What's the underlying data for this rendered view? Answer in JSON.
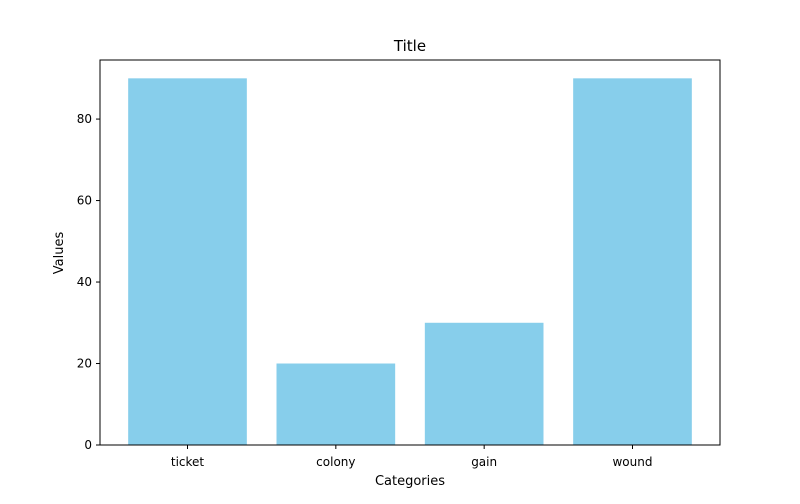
{
  "chart_data": {
    "type": "bar",
    "title": "Title",
    "xlabel": "Categories",
    "ylabel": "Values",
    "categories": [
      "ticket",
      "colony",
      "gain",
      "wound"
    ],
    "values": [
      90,
      20,
      30,
      90
    ],
    "ylim": [
      0,
      94.5
    ],
    "yticks": [
      0,
      20,
      40,
      60,
      80
    ],
    "bar_color": "#87ceeb",
    "grid": false,
    "legend": "none"
  }
}
